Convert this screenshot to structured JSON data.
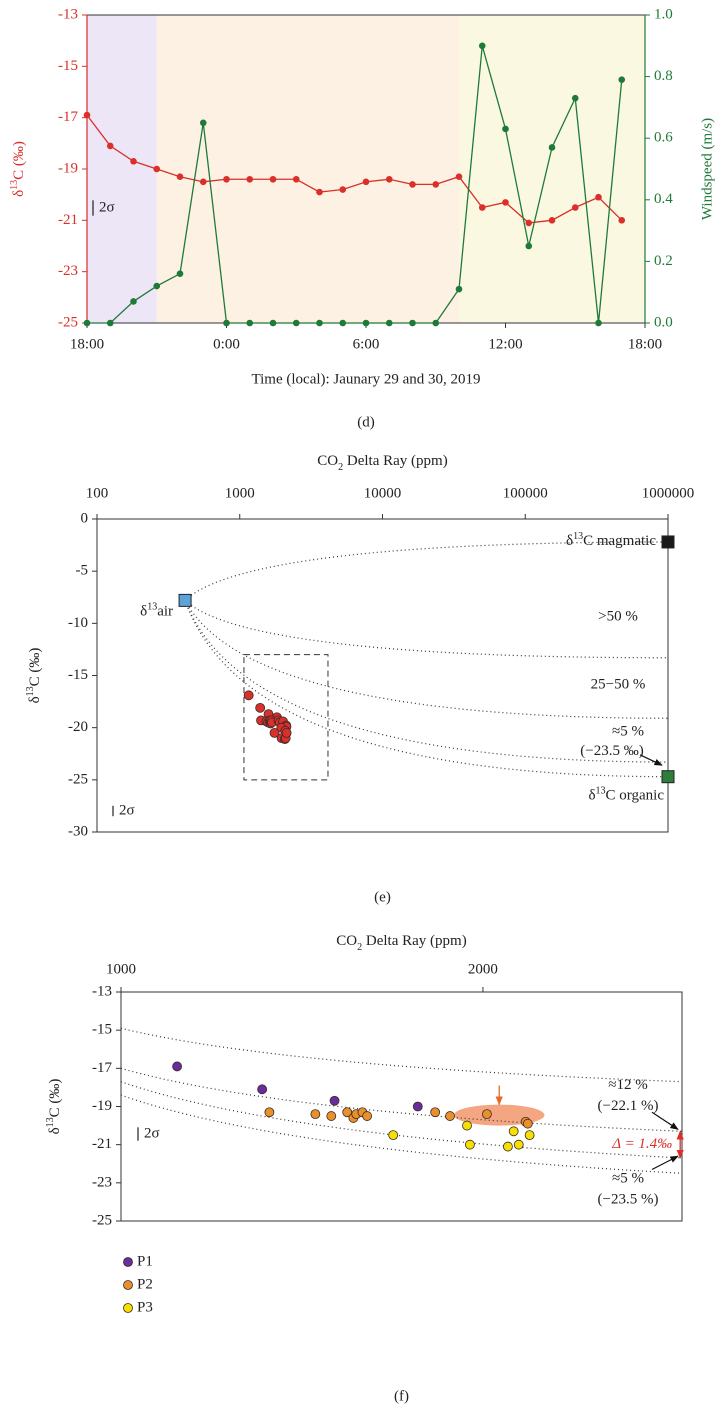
{
  "chart_data": [
    {
      "type": "line",
      "caption": "(d)",
      "xlabel": "Time (local): Jaunary 29 and 30, 2019",
      "ylabel": [
        "δ",
        "13",
        "C (‰)"
      ],
      "y2label": "Windspeed (m/s)",
      "x": [
        0,
        1,
        2,
        3,
        4,
        5,
        6,
        7,
        8,
        9,
        10,
        11,
        12,
        13,
        14,
        15,
        16,
        17,
        18,
        19,
        20,
        21,
        22,
        23
      ],
      "xlim": [
        0,
        24
      ],
      "xticks": [
        {
          "value": 0,
          "label": "18:00"
        },
        {
          "value": 6,
          "label": "0:00"
        },
        {
          "value": 12,
          "label": "6:00"
        },
        {
          "value": 18,
          "label": "12:00"
        },
        {
          "value": 24,
          "label": "18:00"
        }
      ],
      "ylim": [
        -25,
        -13
      ],
      "yticks": [
        -25,
        -23,
        -21,
        -19,
        -17,
        -15,
        -13
      ],
      "y2lim": [
        0,
        1
      ],
      "y2ticks": [
        {
          "value": 0,
          "label": "0.0"
        },
        0.2,
        0.4,
        0.6,
        0.8,
        {
          "value": 1,
          "label": "1.0"
        }
      ],
      "series": [
        {
          "color": "#d9302a",
          "values": [
            -16.9,
            -18.1,
            -18.7,
            -19.0,
            -19.3,
            -19.5,
            -19.4,
            -19.4,
            -19.4,
            -19.4,
            -19.9,
            -19.8,
            -19.5,
            -19.4,
            -19.6,
            -19.6,
            -19.3,
            -20.5,
            -20.3,
            -21.1,
            -21.0,
            -20.5,
            -20.1,
            -21.0
          ]
        },
        {
          "color": "#1f7a3a",
          "axis": "y2",
          "values": [
            0.0,
            0.0,
            0.07,
            0.12,
            0.16,
            0.65,
            0.0,
            0.0,
            0.0,
            0.0,
            0.0,
            0.0,
            0.0,
            0.0,
            0.0,
            0.0,
            0.11,
            0.9,
            0.63,
            0.25,
            0.57,
            0.73,
            0.0,
            0.79
          ]
        }
      ],
      "periods": [
        {
          "start": 0,
          "end": 3,
          "color": "#ece6f6"
        },
        {
          "start": 3,
          "end": 16,
          "color": "#fdf1e3"
        },
        {
          "start": 16,
          "end": 24,
          "color": "#fbf8e1"
        }
      ],
      "sigma_bar": {
        "label": "2σ",
        "length": 0.6
      }
    },
    {
      "type": "scatter",
      "caption": "(e)",
      "title": [
        "CO",
        "2",
        " Delta Ray (ppm)"
      ],
      "ylabel": [
        "δ",
        "13",
        "C (‰)"
      ],
      "xscale": "log",
      "xlim": [
        100,
        1000000
      ],
      "xticks": [
        100,
        1000,
        10000,
        100000,
        1000000
      ],
      "ylim": [
        -30,
        0
      ],
      "yticks": [
        0,
        -5,
        -10,
        -15,
        -20,
        -25,
        -30
      ],
      "series": [
        {
          "color": "#d9302a",
          "x": [
            1155,
            1390,
            1590,
            1820,
            1410,
            1537,
            1581,
            1625,
            1642,
            1650,
            1667,
            1680,
            1868,
            1909,
            2011,
            2118,
            2124,
            1752,
            1956,
            1964,
            2069,
            2085,
            2099,
            2129
          ],
          "values": [
            -16.9,
            -18.1,
            -18.7,
            -19.0,
            -19.3,
            -19.4,
            -19.5,
            -19.3,
            -19.6,
            -19.4,
            -19.3,
            -19.5,
            -19.3,
            -19.5,
            -19.4,
            -19.8,
            -19.9,
            -20.5,
            -20.0,
            -21.0,
            -21.1,
            -20.3,
            -21.0,
            -20.5
          ]
        }
      ],
      "curves": [
        {
          "x": [
            414,
            1000000
          ],
          "values": [
            -7.8,
            -2.2
          ]
        },
        {
          "x": [
            414,
            1000000
          ],
          "values": [
            -7.8,
            -13.3
          ]
        },
        {
          "x": [
            414,
            1000000
          ],
          "values": [
            -7.8,
            -19.1
          ]
        },
        {
          "x": [
            414,
            1000000
          ],
          "values": [
            -7.8,
            -23.3
          ]
        },
        {
          "x": [
            414,
            1000000
          ],
          "values": [
            -7.8,
            -24.7
          ]
        }
      ],
      "zoom_box": {
        "x": [
          1070,
          4150
        ],
        "values": [
          -13,
          -25
        ]
      },
      "markers": [
        {
          "label": [
            "δ",
            "13",
            "air"
          ],
          "x": 414,
          "y": -7.8,
          "color": "#5ba3d9"
        },
        {
          "label": [
            "δ",
            "13",
            "C magmatic"
          ],
          "x": 1000000,
          "y": -2.2,
          "color": "#1a1a1a"
        },
        {
          "label": [
            "δ",
            "13",
            "C organic"
          ],
          "x": 1000000,
          "y": -24.7,
          "color": "#2e7d3a"
        }
      ],
      "labels": [
        ">50 %",
        "25−50 %",
        "≈5 %",
        "(−23.5 ‰)"
      ],
      "sigma_bar": {
        "label": "2σ",
        "length": 1.0
      }
    },
    {
      "type": "scatter",
      "caption": "(f)",
      "title": [
        "CO",
        "2",
        " Delta Ray (ppm)"
      ],
      "ylabel": [
        "δ",
        "13",
        "C (‰)"
      ],
      "xlim": [
        1000,
        2550
      ],
      "xticks": [
        1000,
        2000
      ],
      "ylim": [
        -25,
        -13
      ],
      "yticks": [
        -25,
        -23,
        -21,
        -19,
        -17,
        -15,
        -13
      ],
      "legend": "bottom-left",
      "series": [
        {
          "name": "P1",
          "color": "#6a2c9a",
          "x": [
            1155,
            1390,
            1590,
            1820
          ],
          "values": [
            -16.9,
            -18.1,
            -18.7,
            -19.0
          ]
        },
        {
          "name": "P2",
          "color": "#e8902a",
          "x": [
            1410,
            1537,
            1581,
            1625,
            1642,
            1650,
            1667,
            1680,
            1868,
            1909,
            2011,
            2118,
            2124
          ],
          "values": [
            -19.3,
            -19.4,
            -19.5,
            -19.3,
            -19.6,
            -19.4,
            -19.3,
            -19.5,
            -19.3,
            -19.5,
            -19.4,
            -19.8,
            -19.9
          ]
        },
        {
          "name": "P3",
          "color": "#f5e000",
          "x": [
            1752,
            1956,
            1964,
            2069,
            2085,
            2099,
            2129
          ],
          "values": [
            -20.5,
            -20.0,
            -21.0,
            -21.1,
            -20.3,
            -21.0,
            -20.5
          ]
        }
      ],
      "curves": [
        {
          "x": [
            1000,
            2550
          ],
          "values": [
            -14.9,
            -17.7
          ]
        },
        {
          "x": [
            1000,
            2550
          ],
          "values": [
            -17.0,
            -20.3
          ]
        },
        {
          "x": [
            1000,
            2550
          ],
          "values": [
            -17.7,
            -21.7
          ]
        },
        {
          "x": [
            1000,
            2550
          ],
          "values": [
            -18.4,
            -22.5
          ]
        }
      ],
      "highlight": {
        "x": [
          1920,
          2170
        ],
        "values": [
          -18.9,
          -20.0
        ],
        "color": "#f4a582"
      },
      "pointer": {
        "x": 2045,
        "values": [
          -17.9,
          -18.9
        ],
        "color": "#e8692a"
      },
      "delta": {
        "label": "Δ = 1.4‰",
        "x": 2545,
        "values": [
          -20.3,
          -21.7
        ],
        "color": "#d9302a"
      },
      "labels": [
        "≈12 %",
        "(−22.1 %)",
        "≈5 %",
        "(−23.5 %)"
      ],
      "sigma_bar": {
        "label": "2σ",
        "length": 0.7
      }
    }
  ]
}
